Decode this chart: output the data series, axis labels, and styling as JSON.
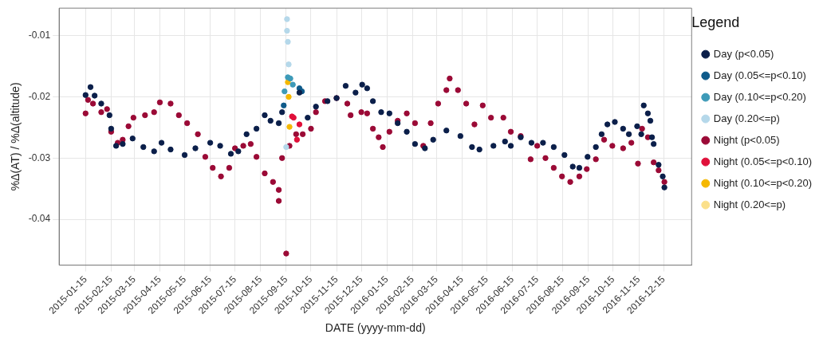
{
  "chart_data": {
    "type": "scatter",
    "xlabel": "DATE (yyyy-mm-dd)",
    "ylabel": "%Δ(AT) / %Δ(altitude)",
    "legend_title": "Legend",
    "legend": "right",
    "grid": true,
    "marker": "circle",
    "xlim": [
      "2014-12-14",
      "2017-01-18"
    ],
    "ylim": [
      -0.0475,
      -0.0055
    ],
    "xticks": [
      "2015-01-15",
      "2015-02-15",
      "2015-03-15",
      "2015-04-15",
      "2015-05-15",
      "2015-06-15",
      "2015-07-15",
      "2015-08-15",
      "2015-09-15",
      "2015-10-15",
      "2015-11-15",
      "2015-12-15",
      "2016-01-15",
      "2016-02-15",
      "2016-03-15",
      "2016-04-15",
      "2016-05-15",
      "2016-06-15",
      "2016-07-15",
      "2016-08-15",
      "2016-09-15",
      "2016-10-15",
      "2016-11-15",
      "2016-12-15"
    ],
    "yticks": [
      -0.04,
      -0.03,
      -0.02,
      -0.01
    ],
    "series": [
      {
        "name": "Day (p<0.05)",
        "color": "#0b1f4a",
        "x": [
          "2015-01-15",
          "2015-01-21",
          "2015-01-26",
          "2015-02-03",
          "2015-02-13",
          "2015-02-15",
          "2015-02-21",
          "2015-03-01",
          "2015-03-13",
          "2015-03-26",
          "2015-04-08",
          "2015-04-17",
          "2015-04-28",
          "2015-05-15",
          "2015-05-28",
          "2015-06-15",
          "2015-06-27",
          "2015-07-10",
          "2015-07-19",
          "2015-07-29",
          "2015-08-10",
          "2015-08-20",
          "2015-08-27",
          "2015-09-06",
          "2015-09-10",
          "2015-10-01",
          "2015-10-11",
          "2015-10-21",
          "2015-11-04",
          "2015-11-15",
          "2015-11-26",
          "2015-12-08",
          "2015-12-16",
          "2015-12-22",
          "2015-12-29",
          "2016-01-08",
          "2016-01-18",
          "2016-01-28",
          "2016-02-08",
          "2016-02-18",
          "2016-03-01",
          "2016-03-11",
          "2016-03-27",
          "2016-04-13",
          "2016-04-27",
          "2016-05-06",
          "2016-05-23",
          "2016-06-06",
          "2016-06-13",
          "2016-06-25",
          "2016-07-08",
          "2016-07-22",
          "2016-08-04",
          "2016-08-17",
          "2016-08-27",
          "2016-09-04",
          "2016-09-14",
          "2016-09-24",
          "2016-10-01",
          "2016-10-08",
          "2016-10-17",
          "2016-10-27",
          "2016-11-03",
          "2016-11-13",
          "2016-11-18",
          "2016-11-21",
          "2016-11-26",
          "2016-11-29",
          "2016-12-01",
          "2016-12-03",
          "2016-12-09",
          "2016-12-14",
          "2016-12-16"
        ],
        "values": [
          -0.0197,
          -0.0184,
          -0.0198,
          -0.0211,
          -0.023,
          -0.0252,
          -0.028,
          -0.0277,
          -0.0268,
          -0.0282,
          -0.0289,
          -0.0275,
          -0.0286,
          -0.0295,
          -0.0284,
          -0.0275,
          -0.028,
          -0.0293,
          -0.0289,
          -0.0261,
          -0.0252,
          -0.023,
          -0.0239,
          -0.0243,
          -0.0225,
          -0.0193,
          -0.0234,
          -0.0216,
          -0.0207,
          -0.0202,
          -0.0182,
          -0.0193,
          -0.018,
          -0.0186,
          -0.0207,
          -0.0225,
          -0.0227,
          -0.0243,
          -0.0257,
          -0.0277,
          -0.0284,
          -0.027,
          -0.0255,
          -0.0264,
          -0.0282,
          -0.0286,
          -0.028,
          -0.0273,
          -0.028,
          -0.0266,
          -0.0275,
          -0.0275,
          -0.0282,
          -0.0295,
          -0.0314,
          -0.0316,
          -0.0298,
          -0.0282,
          -0.0261,
          -0.0245,
          -0.0241,
          -0.0252,
          -0.0261,
          -0.0248,
          -0.0261,
          -0.0214,
          -0.0227,
          -0.0239,
          -0.0266,
          -0.0277,
          -0.0311,
          -0.033,
          -0.0348
        ]
      },
      {
        "name": "Day (0.05<=p<0.10)",
        "color": "#0e5a8a",
        "x": [
          "2015-09-12",
          "2015-10-01",
          "2015-10-04"
        ],
        "values": [
          -0.0214,
          -0.0186,
          -0.0191
        ]
      },
      {
        "name": "Day (0.10<=p<0.20)",
        "color": "#3d9ab8",
        "x": [
          "2015-09-13",
          "2015-09-17",
          "2015-09-20",
          "2015-09-23"
        ],
        "values": [
          -0.0191,
          -0.0168,
          -0.017,
          -0.018
        ]
      },
      {
        "name": "Day (0.20<=p)",
        "color": "#b5d8ea",
        "x": [
          "2015-09-15",
          "2015-09-16",
          "2015-09-16",
          "2015-09-17",
          "2015-09-18"
        ],
        "values": [
          -0.0282,
          -0.0073,
          -0.0092,
          -0.011,
          -0.0147
        ]
      },
      {
        "name": "Night (p<0.05)",
        "color": "#9b0a36",
        "x": [
          "2015-01-15",
          "2015-01-18",
          "2015-01-24",
          "2015-02-03",
          "2015-02-10",
          "2015-02-15",
          "2015-02-23",
          "2015-03-01",
          "2015-03-08",
          "2015-03-14",
          "2015-03-28",
          "2015-04-08",
          "2015-04-15",
          "2015-04-28",
          "2015-05-08",
          "2015-05-18",
          "2015-05-31",
          "2015-06-09",
          "2015-06-18",
          "2015-06-28",
          "2015-07-08",
          "2015-07-15",
          "2015-07-25",
          "2015-08-03",
          "2015-08-10",
          "2015-08-20",
          "2015-08-30",
          "2015-09-06",
          "2015-09-06",
          "2015-09-10",
          "2015-09-15",
          "2015-09-19",
          "2015-09-27",
          "2015-10-05",
          "2015-10-15",
          "2015-10-21",
          "2015-11-01",
          "2015-11-15",
          "2015-11-28",
          "2015-12-02",
          "2015-12-15",
          "2015-12-22",
          "2015-12-29",
          "2016-01-05",
          "2016-01-10",
          "2016-01-18",
          "2016-01-28",
          "2016-02-08",
          "2016-02-18",
          "2016-02-28",
          "2016-03-08",
          "2016-03-17",
          "2016-03-27",
          "2016-03-31",
          "2016-04-10",
          "2016-04-20",
          "2016-04-30",
          "2016-05-10",
          "2016-05-20",
          "2016-06-04",
          "2016-06-13",
          "2016-06-25",
          "2016-07-07",
          "2016-07-15",
          "2016-07-25",
          "2016-08-04",
          "2016-08-14",
          "2016-08-24",
          "2016-09-04",
          "2016-09-13",
          "2016-09-24",
          "2016-10-04",
          "2016-10-14",
          "2016-10-27",
          "2016-11-06",
          "2016-11-14",
          "2016-11-19",
          "2016-11-26",
          "2016-12-03",
          "2016-12-09",
          "2016-12-16"
        ],
        "values": [
          -0.0227,
          -0.0205,
          -0.0211,
          -0.0225,
          -0.022,
          -0.0257,
          -0.0275,
          -0.027,
          -0.0248,
          -0.0234,
          -0.023,
          -0.0225,
          -0.0209,
          -0.0211,
          -0.023,
          -0.0243,
          -0.0261,
          -0.0298,
          -0.0316,
          -0.033,
          -0.0316,
          -0.0284,
          -0.028,
          -0.0277,
          -0.0298,
          -0.0325,
          -0.0339,
          -0.0352,
          -0.037,
          -0.03,
          -0.0456,
          -0.028,
          -0.0261,
          -0.0261,
          -0.0252,
          -0.0225,
          -0.0207,
          -0.0202,
          -0.0211,
          -0.023,
          -0.0225,
          -0.0227,
          -0.0252,
          -0.0266,
          -0.0282,
          -0.0257,
          -0.0239,
          -0.0227,
          -0.0243,
          -0.028,
          -0.0243,
          -0.0211,
          -0.0189,
          -0.017,
          -0.0189,
          -0.0211,
          -0.0245,
          -0.0214,
          -0.0234,
          -0.0234,
          -0.0257,
          -0.0264,
          -0.0302,
          -0.028,
          -0.03,
          -0.0316,
          -0.033,
          -0.0339,
          -0.033,
          -0.0318,
          -0.0302,
          -0.027,
          -0.028,
          -0.0284,
          -0.0275,
          -0.0309,
          -0.0252,
          -0.0266,
          -0.0307,
          -0.032,
          -0.0339
        ]
      },
      {
        "name": "Night (0.05<=p<0.10)",
        "color": "#e0103a",
        "x": [
          "2015-09-22",
          "2015-09-24",
          "2015-09-28",
          "2015-10-01"
        ],
        "values": [
          -0.0232,
          -0.0234,
          -0.027,
          -0.0245
        ]
      },
      {
        "name": "Night (0.10<=p<0.20)",
        "color": "#f5b800",
        "x": [
          "2015-09-17",
          "2015-09-18",
          "2015-09-19"
        ],
        "values": [
          -0.0176,
          -0.02,
          -0.0249
        ]
      },
      {
        "name": "Night (0.20<=p)",
        "color": "#fbe08a"
      }
    ]
  }
}
